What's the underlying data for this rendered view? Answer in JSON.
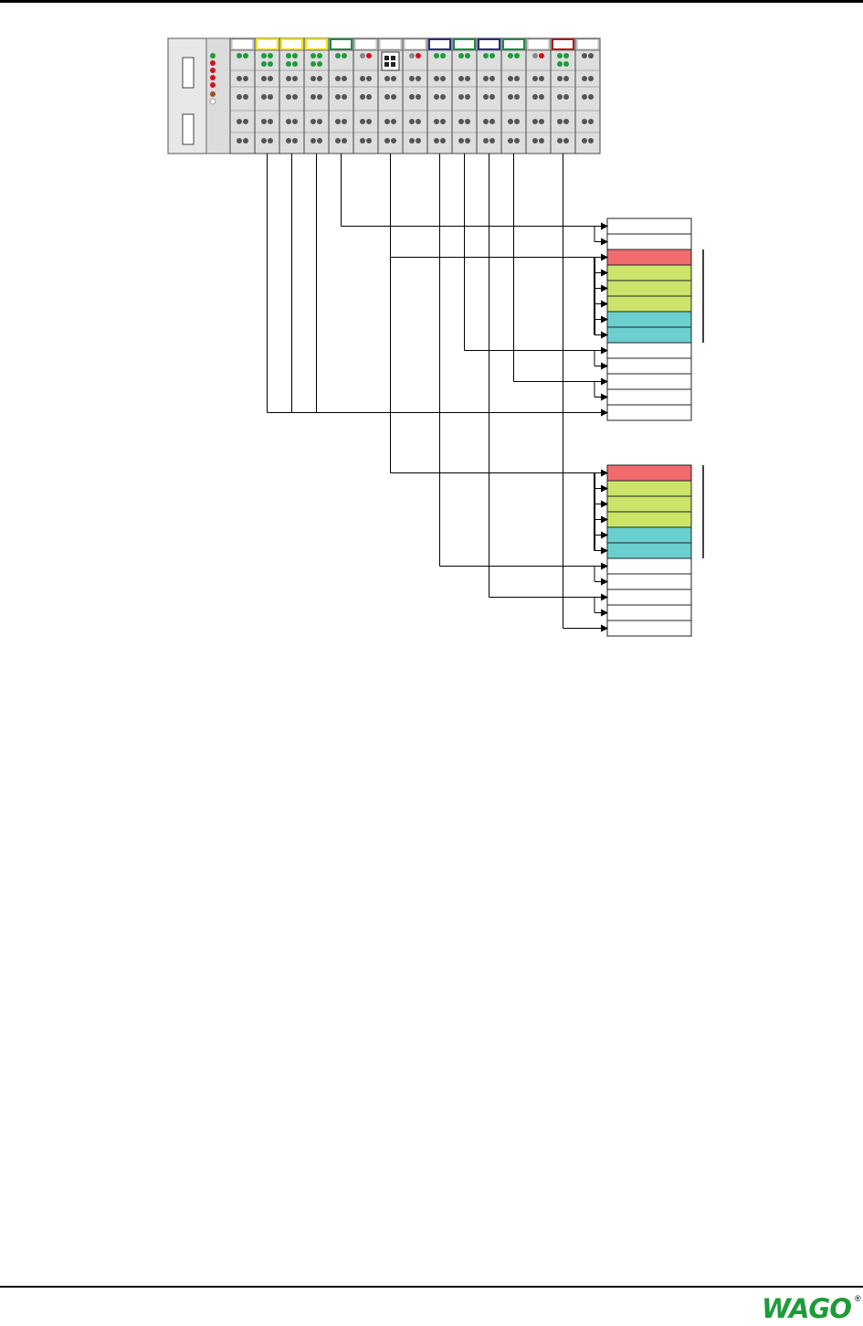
{
  "diagram": {
    "type": "fieldbus node process image mapping",
    "coupler": {
      "leds": [
        "#1e9b3a",
        "#d0121b",
        "#d0121b",
        "#d0121b",
        "#d0121b",
        "#a05020",
        "#ffffff"
      ]
    },
    "modules": [
      {
        "stripe": "#ffffff",
        "top_dots": [
          "#1e9b3a",
          "#1e9b3a"
        ],
        "second_row_green": false,
        "display": false
      },
      {
        "stripe": "#f2e600",
        "top_dots": [
          "#1e9b3a",
          "#1e9b3a"
        ],
        "second_row_green": true,
        "display": false
      },
      {
        "stripe": "#f2e600",
        "top_dots": [
          "#1e9b3a",
          "#1e9b3a"
        ],
        "second_row_green": true,
        "display": false
      },
      {
        "stripe": "#f2e600",
        "top_dots": [
          "#1e9b3a",
          "#1e9b3a"
        ],
        "second_row_green": true,
        "display": false
      },
      {
        "stripe": "#1e8a4a",
        "top_dots": [
          "#1e9b3a",
          "#1e9b3a"
        ],
        "second_row_green": false,
        "display": false
      },
      {
        "stripe": "#ffffff",
        "top_dots": [
          "#888888",
          "#d0121b"
        ],
        "second_row_green": false,
        "display": false
      },
      {
        "stripe": "#ffffff",
        "top_dots": [],
        "second_row_green": false,
        "display": true
      },
      {
        "stripe": "#ffffff",
        "top_dots": [
          "#888888",
          "#d0121b"
        ],
        "second_row_green": false,
        "display": false
      },
      {
        "stripe": "#2a2a80",
        "top_dots": [
          "#1e9b3a",
          "#1e9b3a"
        ],
        "second_row_green": false,
        "display": false
      },
      {
        "stripe": "#1e8a4a",
        "top_dots": [
          "#1e9b3a",
          "#1e9b3a"
        ],
        "second_row_green": false,
        "display": false
      },
      {
        "stripe": "#2a2a80",
        "top_dots": [
          "#1e9b3a",
          "#1e9b3a"
        ],
        "second_row_green": false,
        "display": false
      },
      {
        "stripe": "#1e8a4a",
        "top_dots": [
          "#1e9b3a",
          "#1e9b3a"
        ],
        "second_row_green": false,
        "display": false
      },
      {
        "stripe": "#ffffff",
        "top_dots": [
          "#888888",
          "#d0121b"
        ],
        "second_row_green": false,
        "display": false
      },
      {
        "stripe": "#b01818",
        "top_dots": [
          "#1e9b3a",
          "#1e9b3a"
        ],
        "second_row_green": true,
        "display": false
      },
      {
        "stripe": "#ffffff",
        "top_dots": [
          "#555555",
          "#555555"
        ],
        "second_row_green": false,
        "display": false
      }
    ],
    "tables": [
      {
        "name": "upper",
        "cells": [
          "#ffffff",
          "#ffffff",
          "#f06a6e",
          "#cce46a",
          "#cce46a",
          "#cce46a",
          "#6ccfcf",
          "#6ccfcf",
          "#ffffff",
          "#ffffff",
          "#ffffff",
          "#ffffff",
          "#ffffff"
        ],
        "bracket_rows": [
          2,
          7
        ]
      },
      {
        "name": "lower",
        "cells": [
          "#f06a6e",
          "#cce46a",
          "#cce46a",
          "#cce46a",
          "#6ccfcf",
          "#6ccfcf",
          "#ffffff",
          "#ffffff",
          "#ffffff",
          "#ffffff",
          "#ffffff"
        ],
        "bracket_rows": [
          0,
          5
        ]
      }
    ],
    "connections": [
      {
        "from_module": 4,
        "table": 0,
        "rows": [
          0,
          1
        ]
      },
      {
        "from_module": 6,
        "table": 0,
        "rows": [
          2,
          3,
          4,
          5,
          6,
          7
        ]
      },
      {
        "from_module": 9,
        "table": 0,
        "rows": [
          8,
          9
        ]
      },
      {
        "from_module": 11,
        "table": 0,
        "rows": [
          10,
          11
        ]
      },
      {
        "from_module": 1,
        "table": 0,
        "rows": [
          12
        ],
        "merged_with_modules": [
          2,
          3
        ]
      },
      {
        "from_module": 6,
        "table": 1,
        "rows": [
          0,
          1,
          2,
          3,
          4,
          5
        ]
      },
      {
        "from_module": 8,
        "table": 1,
        "rows": [
          6,
          7
        ]
      },
      {
        "from_module": 10,
        "table": 1,
        "rows": [
          8,
          9
        ]
      },
      {
        "from_module": 13,
        "table": 1,
        "rows": [
          10
        ]
      }
    ]
  },
  "footer": {
    "logo_text": "WAGO",
    "registered_mark": "®"
  }
}
